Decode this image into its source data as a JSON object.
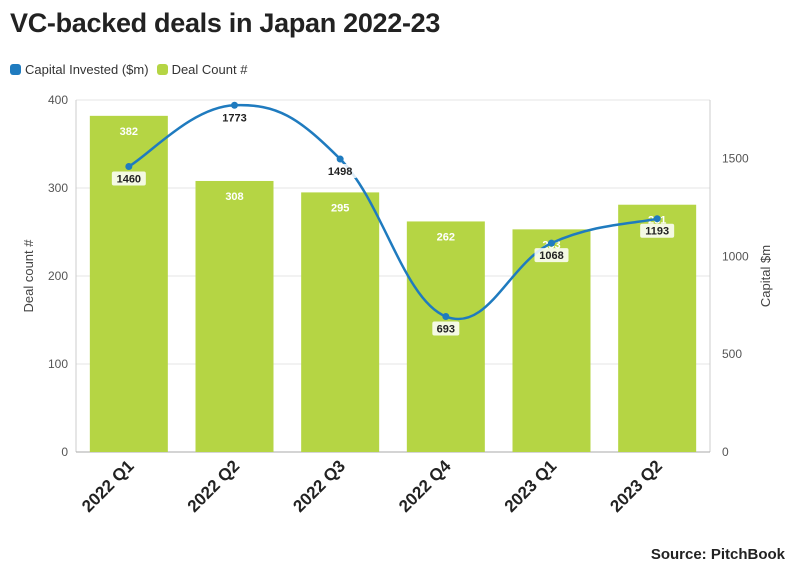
{
  "title": "VC-backed deals in Japan 2022-23",
  "legend": {
    "capital_label": "Capital Invested ($m)",
    "deal_label": "Deal Count #"
  },
  "source": "Source: PitchBook",
  "colors": {
    "bar": "#b5d544",
    "line": "#1f7bbf",
    "grid": "#e5e5e5",
    "axis_text": "#555555"
  },
  "chart_data": {
    "type": "bar",
    "categories": [
      "2022 Q1",
      "2022 Q2",
      "2022 Q3",
      "2022 Q4",
      "2023 Q1",
      "2023 Q2"
    ],
    "series": [
      {
        "name": "Deal Count #",
        "type": "bar",
        "axis": "left",
        "values": [
          382,
          308,
          295,
          262,
          253,
          281
        ]
      },
      {
        "name": "Capital Invested ($m)",
        "type": "line",
        "axis": "right",
        "values": [
          1460,
          1773,
          1498,
          693,
          1068,
          1193
        ]
      }
    ],
    "ylabel": "Deal count #",
    "y2label": "Capital $m",
    "ylim": [
      0,
      400
    ],
    "y2lim": [
      0,
      1800
    ],
    "yticks": [
      0,
      100,
      200,
      300,
      400
    ],
    "y2ticks": [
      0,
      500,
      1000,
      1500
    ],
    "grid": true,
    "legend_position": "top-left"
  }
}
